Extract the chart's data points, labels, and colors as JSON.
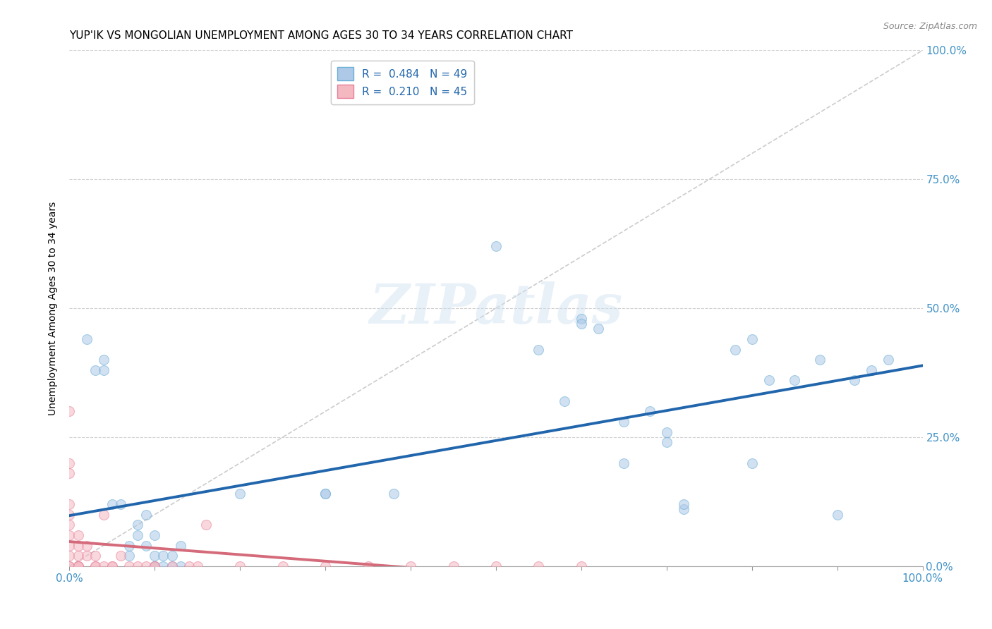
{
  "title": "YUP'IK VS MONGOLIAN UNEMPLOYMENT AMONG AGES 30 TO 34 YEARS CORRELATION CHART",
  "source": "Source: ZipAtlas.com",
  "ylabel": "Unemployment Among Ages 30 to 34 years",
  "background_color": "#ffffff",
  "grid_color": "#cccccc",
  "watermark": "ZIPatlas",
  "yupik_points": [
    [
      0.02,
      0.44
    ],
    [
      0.03,
      0.38
    ],
    [
      0.04,
      0.4
    ],
    [
      0.04,
      0.38
    ],
    [
      0.05,
      0.12
    ],
    [
      0.06,
      0.12
    ],
    [
      0.07,
      0.04
    ],
    [
      0.07,
      0.02
    ],
    [
      0.08,
      0.08
    ],
    [
      0.08,
      0.06
    ],
    [
      0.09,
      0.1
    ],
    [
      0.09,
      0.04
    ],
    [
      0.1,
      0.06
    ],
    [
      0.1,
      0.02
    ],
    [
      0.1,
      0.0
    ],
    [
      0.1,
      0.0
    ],
    [
      0.11,
      0.0
    ],
    [
      0.11,
      0.02
    ],
    [
      0.12,
      0.02
    ],
    [
      0.12,
      0.0
    ],
    [
      0.13,
      0.04
    ],
    [
      0.13,
      0.0
    ],
    [
      0.2,
      0.14
    ],
    [
      0.3,
      0.14
    ],
    [
      0.3,
      0.14
    ],
    [
      0.38,
      0.14
    ],
    [
      0.5,
      0.62
    ],
    [
      0.55,
      0.42
    ],
    [
      0.58,
      0.32
    ],
    [
      0.6,
      0.48
    ],
    [
      0.6,
      0.47
    ],
    [
      0.62,
      0.46
    ],
    [
      0.65,
      0.28
    ],
    [
      0.65,
      0.2
    ],
    [
      0.68,
      0.3
    ],
    [
      0.7,
      0.26
    ],
    [
      0.7,
      0.24
    ],
    [
      0.72,
      0.11
    ],
    [
      0.72,
      0.12
    ],
    [
      0.78,
      0.42
    ],
    [
      0.8,
      0.2
    ],
    [
      0.8,
      0.44
    ],
    [
      0.82,
      0.36
    ],
    [
      0.85,
      0.36
    ],
    [
      0.88,
      0.4
    ],
    [
      0.9,
      0.1
    ],
    [
      0.92,
      0.36
    ],
    [
      0.94,
      0.38
    ],
    [
      0.96,
      0.4
    ]
  ],
  "mongolian_points": [
    [
      0.0,
      0.3
    ],
    [
      0.0,
      0.2
    ],
    [
      0.0,
      0.18
    ],
    [
      0.0,
      0.12
    ],
    [
      0.0,
      0.1
    ],
    [
      0.0,
      0.08
    ],
    [
      0.0,
      0.06
    ],
    [
      0.0,
      0.04
    ],
    [
      0.0,
      0.02
    ],
    [
      0.0,
      0.0
    ],
    [
      0.0,
      0.0
    ],
    [
      0.01,
      0.0
    ],
    [
      0.01,
      0.0
    ],
    [
      0.01,
      0.0
    ],
    [
      0.01,
      0.02
    ],
    [
      0.01,
      0.04
    ],
    [
      0.01,
      0.06
    ],
    [
      0.02,
      0.04
    ],
    [
      0.02,
      0.02
    ],
    [
      0.03,
      0.0
    ],
    [
      0.03,
      0.0
    ],
    [
      0.03,
      0.02
    ],
    [
      0.04,
      0.0
    ],
    [
      0.04,
      0.1
    ],
    [
      0.05,
      0.0
    ],
    [
      0.05,
      0.0
    ],
    [
      0.06,
      0.02
    ],
    [
      0.07,
      0.0
    ],
    [
      0.08,
      0.0
    ],
    [
      0.09,
      0.0
    ],
    [
      0.1,
      0.0
    ],
    [
      0.1,
      0.0
    ],
    [
      0.12,
      0.0
    ],
    [
      0.14,
      0.0
    ],
    [
      0.15,
      0.0
    ],
    [
      0.16,
      0.08
    ],
    [
      0.2,
      0.0
    ],
    [
      0.25,
      0.0
    ],
    [
      0.3,
      0.0
    ],
    [
      0.35,
      0.0
    ],
    [
      0.4,
      0.0
    ],
    [
      0.45,
      0.0
    ],
    [
      0.5,
      0.0
    ],
    [
      0.55,
      0.0
    ],
    [
      0.6,
      0.0
    ]
  ],
  "yupik_color": "#aec9e8",
  "yupik_edge_color": "#6aaed6",
  "mongolian_color": "#f4b8c1",
  "mongolian_edge_color": "#e87f9a",
  "yupik_R": 0.484,
  "yupik_N": 49,
  "mongolian_R": 0.21,
  "mongolian_N": 45,
  "trend_yupik_color": "#2166ac",
  "trend_mongolian_color": "#d46a7a",
  "diagonal_color": "#cccccc",
  "xlim": [
    0.0,
    1.0
  ],
  "ylim": [
    0.0,
    1.0
  ],
  "right_ytick_positions": [
    0.0,
    0.25,
    0.5,
    0.75,
    1.0
  ],
  "right_ytick_labels": [
    "0.0%",
    "25.0%",
    "50.0%",
    "75.0%",
    "100.0%"
  ],
  "xtick_edge_labels": [
    "0.0%",
    "100.0%"
  ],
  "xtick_edge_positions": [
    0.0,
    1.0
  ],
  "marker_size": 100,
  "marker_alpha": 0.55,
  "title_fontsize": 11,
  "axis_label_fontsize": 10,
  "tick_fontsize": 11,
  "legend_fontsize": 11,
  "source_fontsize": 9
}
